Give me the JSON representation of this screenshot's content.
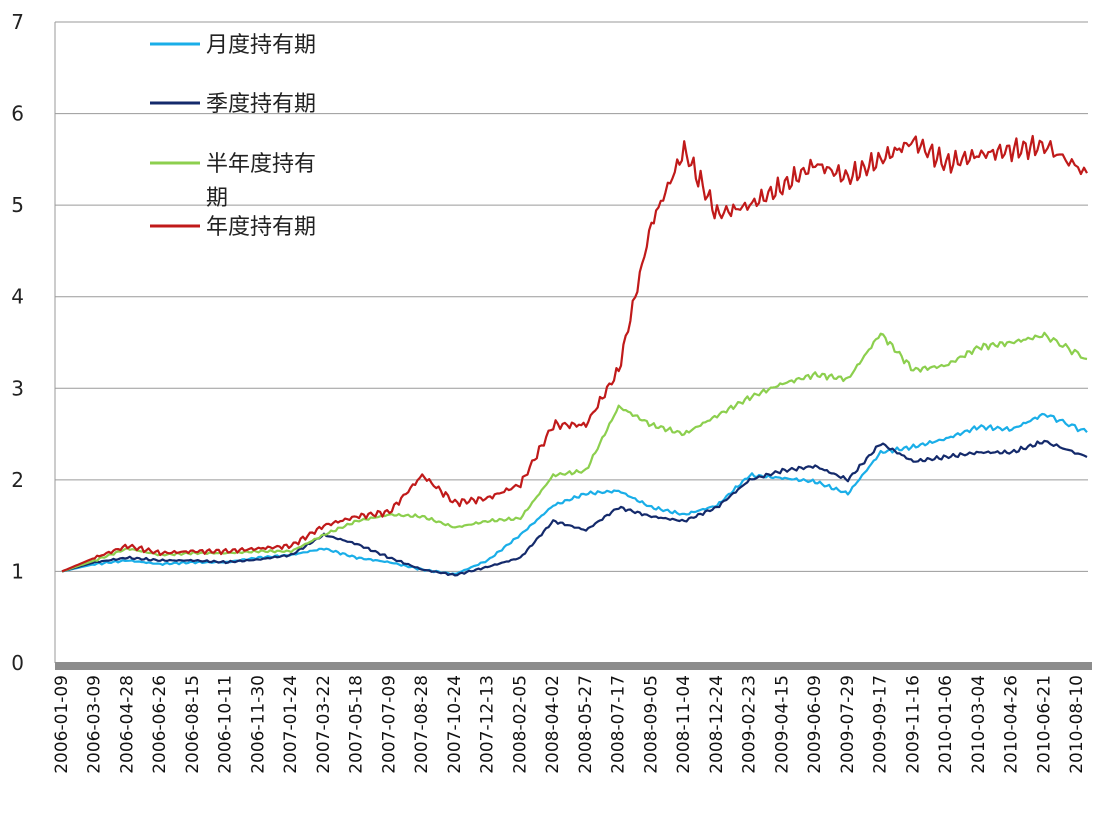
{
  "chart_data": {
    "type": "line",
    "title": "",
    "xlabel": "",
    "ylabel": "",
    "ylim": [
      0,
      7
    ],
    "yticks": [
      0,
      1,
      2,
      3,
      4,
      5,
      6,
      7
    ],
    "grid": "horizontal",
    "legend_position": "top-left",
    "x_tick_labels": [
      "2006-01-09",
      "2006-03-09",
      "2006-04-28",
      "2006-06-26",
      "2006-08-15",
      "2006-10-11",
      "2006-11-30",
      "2007-01-24",
      "2007-03-22",
      "2007-05-18",
      "2007-07-09",
      "2007-08-28",
      "2007-10-24",
      "2007-12-13",
      "2008-02-05",
      "2008-04-02",
      "2008-05-27",
      "2008-07-17",
      "2008-09-05",
      "2008-11-04",
      "2008-12-24",
      "2009-02-23",
      "2009-04-15",
      "2009-06-09",
      "2009-07-29",
      "2009-09-17",
      "2009-11-16",
      "2010-01-06",
      "2010-03-04",
      "2010-04-26",
      "2010-06-21",
      "2010-08-10"
    ],
    "series": [
      {
        "name": "月度持有期",
        "color": "#1aaee8",
        "points": [
          [
            0,
            1.0
          ],
          [
            1,
            1.08
          ],
          [
            2,
            1.12
          ],
          [
            3,
            1.08
          ],
          [
            4,
            1.1
          ],
          [
            5,
            1.1
          ],
          [
            6,
            1.15
          ],
          [
            7,
            1.18
          ],
          [
            8,
            1.25
          ],
          [
            9,
            1.15
          ],
          [
            10,
            1.1
          ],
          [
            11,
            1.02
          ],
          [
            12,
            0.97
          ],
          [
            13,
            1.12
          ],
          [
            14,
            1.4
          ],
          [
            15,
            1.72
          ],
          [
            16,
            1.85
          ],
          [
            17,
            1.88
          ],
          [
            18,
            1.7
          ],
          [
            19,
            1.62
          ],
          [
            20,
            1.72
          ],
          [
            21,
            2.05
          ],
          [
            22,
            2.02
          ],
          [
            23,
            1.98
          ],
          [
            24,
            1.85
          ],
          [
            25,
            2.3
          ],
          [
            26,
            2.36
          ],
          [
            27,
            2.45
          ],
          [
            28,
            2.58
          ],
          [
            29,
            2.55
          ],
          [
            30,
            2.72
          ],
          [
            31.3,
            2.52
          ]
        ]
      },
      {
        "name": "季度持有期",
        "color": "#142a6b",
        "points": [
          [
            0,
            1.0
          ],
          [
            1,
            1.1
          ],
          [
            2,
            1.15
          ],
          [
            3,
            1.12
          ],
          [
            4,
            1.12
          ],
          [
            5,
            1.1
          ],
          [
            6,
            1.13
          ],
          [
            7,
            1.18
          ],
          [
            8,
            1.4
          ],
          [
            9,
            1.3
          ],
          [
            10,
            1.15
          ],
          [
            11,
            1.02
          ],
          [
            12,
            0.96
          ],
          [
            13,
            1.05
          ],
          [
            14,
            1.15
          ],
          [
            15,
            1.55
          ],
          [
            16,
            1.45
          ],
          [
            17,
            1.7
          ],
          [
            18,
            1.6
          ],
          [
            19,
            1.55
          ],
          [
            20,
            1.7
          ],
          [
            21,
            2.0
          ],
          [
            22,
            2.1
          ],
          [
            23,
            2.15
          ],
          [
            24,
            2.0
          ],
          [
            25,
            2.4
          ],
          [
            26,
            2.2
          ],
          [
            27,
            2.25
          ],
          [
            28,
            2.3
          ],
          [
            29,
            2.3
          ],
          [
            30,
            2.42
          ],
          [
            31.3,
            2.25
          ]
        ]
      },
      {
        "name": "半年度持有期",
        "color": "#8ccf4e",
        "points": [
          [
            0,
            1.0
          ],
          [
            1,
            1.12
          ],
          [
            2,
            1.25
          ],
          [
            3,
            1.18
          ],
          [
            4,
            1.2
          ],
          [
            5,
            1.2
          ],
          [
            6,
            1.22
          ],
          [
            7,
            1.22
          ],
          [
            8,
            1.4
          ],
          [
            9,
            1.55
          ],
          [
            10,
            1.62
          ],
          [
            11,
            1.6
          ],
          [
            12,
            1.48
          ],
          [
            13,
            1.55
          ],
          [
            14,
            1.58
          ],
          [
            15,
            2.05
          ],
          [
            16,
            2.1
          ],
          [
            17,
            2.8
          ],
          [
            18,
            2.6
          ],
          [
            19,
            2.5
          ],
          [
            20,
            2.7
          ],
          [
            21,
            2.9
          ],
          [
            22,
            3.05
          ],
          [
            23,
            3.15
          ],
          [
            24,
            3.1
          ],
          [
            25,
            3.6
          ],
          [
            26,
            3.2
          ],
          [
            27,
            3.25
          ],
          [
            28,
            3.45
          ],
          [
            29,
            3.5
          ],
          [
            30,
            3.58
          ],
          [
            31.3,
            3.32
          ]
        ]
      },
      {
        "name": "年度持有期",
        "color": "#c01a1a",
        "points": [
          [
            0,
            1.0
          ],
          [
            1,
            1.15
          ],
          [
            2,
            1.28
          ],
          [
            3,
            1.2
          ],
          [
            4,
            1.22
          ],
          [
            5,
            1.22
          ],
          [
            6,
            1.25
          ],
          [
            7,
            1.28
          ],
          [
            8,
            1.5
          ],
          [
            9,
            1.6
          ],
          [
            10,
            1.65
          ],
          [
            11,
            2.05
          ],
          [
            12,
            1.75
          ],
          [
            13,
            1.8
          ],
          [
            14,
            1.95
          ],
          [
            15,
            2.6
          ],
          [
            16,
            2.6
          ],
          [
            17,
            3.2
          ],
          [
            18,
            4.8
          ],
          [
            19,
            5.6
          ],
          [
            20,
            4.9
          ],
          [
            21,
            5.0
          ],
          [
            22,
            5.2
          ],
          [
            23,
            5.45
          ],
          [
            24,
            5.3
          ],
          [
            25,
            5.5
          ],
          [
            26,
            5.7
          ],
          [
            27,
            5.45
          ],
          [
            28,
            5.55
          ],
          [
            29,
            5.6
          ],
          [
            30,
            5.65
          ],
          [
            31.3,
            5.35
          ]
        ]
      }
    ]
  }
}
